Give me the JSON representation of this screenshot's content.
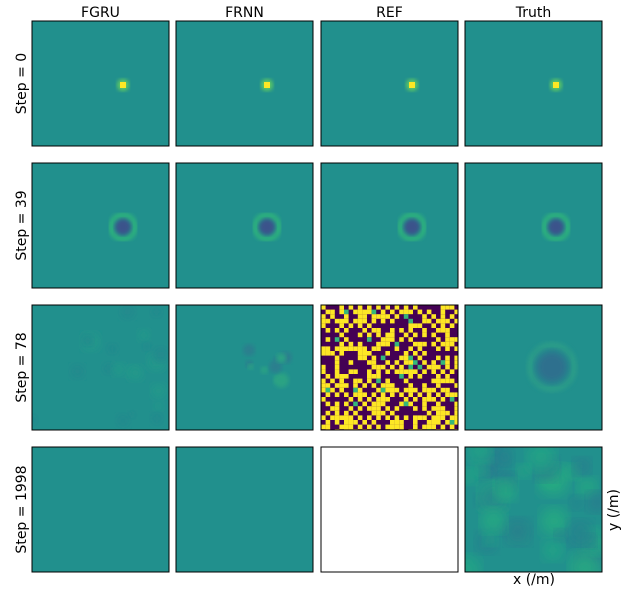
{
  "figure": {
    "columns": [
      "FGRU",
      "FRNN",
      "REF",
      "Truth"
    ],
    "rows": [
      "Step = 0",
      "Step = 39",
      "Step = 78",
      "Step = 1998"
    ],
    "x_label": "x (/m)",
    "y_label": "y (/m)"
  }
}
